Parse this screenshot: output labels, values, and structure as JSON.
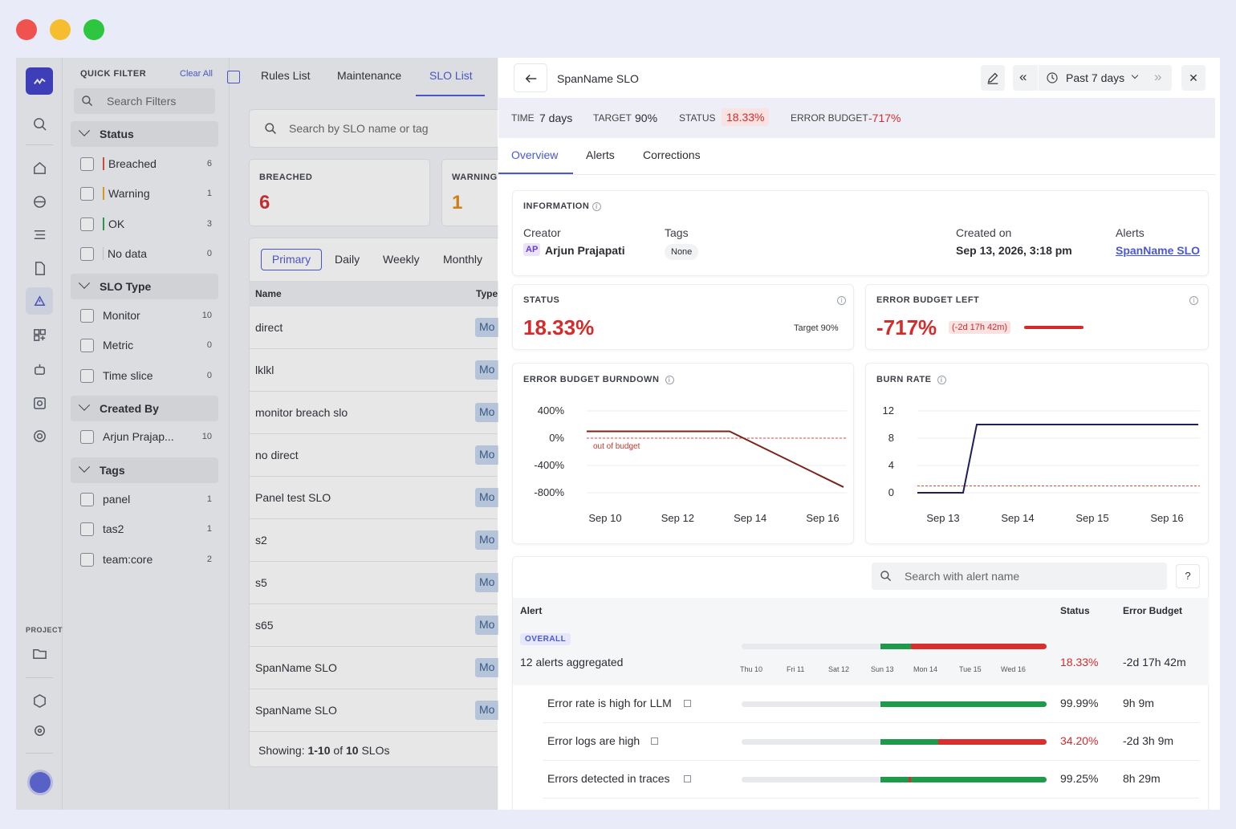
{
  "window": {
    "buttons": [
      "close",
      "minimize",
      "maximize"
    ]
  },
  "rail": {
    "project_label": "PROJECT",
    "icons": [
      "logo-icon",
      "search-icon",
      "home-icon",
      "globe-icon",
      "list-icon",
      "document-icon",
      "alert-icon",
      "grid-plus-icon",
      "robot-icon",
      "query-icon",
      "settings-gear-icon",
      "folder-icon",
      "cube-icon",
      "gear-icon",
      "avatar-icon"
    ]
  },
  "filters": {
    "title": "QUICK FILTER",
    "clear": "Clear All",
    "search_placeholder": "Search Filters",
    "status": {
      "label": "Status",
      "items": [
        {
          "label": "Breached",
          "count": "6",
          "color": "#e04b3a"
        },
        {
          "label": "Warning",
          "count": "1",
          "color": "#f0a020"
        },
        {
          "label": "OK",
          "count": "3",
          "color": "#28a050"
        },
        {
          "label": "No data",
          "count": "0",
          "color": "#c8c8c8"
        }
      ]
    },
    "slo_type": {
      "label": "SLO Type",
      "items": [
        {
          "label": "Monitor",
          "count": "10"
        },
        {
          "label": "Metric",
          "count": "0"
        },
        {
          "label": "Time slice",
          "count": "0"
        }
      ]
    },
    "created_by": {
      "label": "Created By",
      "items": [
        {
          "label": "Arjun Prajap...",
          "count": "10"
        }
      ]
    },
    "tags": {
      "label": "Tags",
      "items": [
        {
          "label": "panel",
          "count": "1"
        },
        {
          "label": "tas2",
          "count": "1"
        },
        {
          "label": "team:core",
          "count": "2"
        }
      ]
    }
  },
  "list": {
    "tabs": [
      "Rules List",
      "Maintenance",
      "SLO List"
    ],
    "active_tab": "SLO List",
    "search_placeholder": "Search by SLO name or tag",
    "breached_label": "BREACHED",
    "breached_value": "6",
    "warning_label": "WARNING",
    "warning_value": "1",
    "periods": [
      "Primary",
      "Daily",
      "Weekly",
      "Monthly"
    ],
    "columns": [
      "Name",
      "Type"
    ],
    "rows": [
      {
        "name": "direct",
        "type": "Mo"
      },
      {
        "name": "lklkl",
        "type": "Mo"
      },
      {
        "name": "monitor breach slo",
        "type": "Mo"
      },
      {
        "name": "no direct",
        "type": "Mo"
      },
      {
        "name": "Panel test SLO",
        "type": "Mo"
      },
      {
        "name": "s2",
        "type": "Mo"
      },
      {
        "name": "s5",
        "type": "Mo"
      },
      {
        "name": "s65",
        "type": "Mo"
      },
      {
        "name": "SpanName SLO",
        "type": "Mo"
      },
      {
        "name": "SpanName SLO",
        "type": "Mo"
      }
    ],
    "footer_prefix": "Showing: ",
    "footer_range": "1-10",
    "footer_mid": " of ",
    "footer_total": "10",
    "footer_suffix": " SLOs"
  },
  "detail": {
    "title": "SpanName SLO",
    "range": "Past 7 days",
    "summary": {
      "time_label": "TIME",
      "time_value": "7 days",
      "target_label": "TARGET",
      "target_value": "90%",
      "status_label": "STATUS",
      "status_value": "18.33%",
      "budget_label": "ERROR BUDGET",
      "budget_value": "-717%"
    },
    "tabs": [
      "Overview",
      "Alerts",
      "Corrections"
    ],
    "information": {
      "title": "INFORMATION",
      "creator_label": "Creator",
      "creator_initials": "AP",
      "creator_name": "Arjun Prajapati",
      "tags_label": "Tags",
      "tags_value": "None",
      "created_label": "Created on",
      "created_value": "Sep 13, 2026, 3:18 pm",
      "alerts_label": "Alerts",
      "alerts_value": "SpanName SLO"
    },
    "status_card": {
      "title": "STATUS",
      "value": "18.33%",
      "target": "Target 90%"
    },
    "budget_card": {
      "title": "ERROR BUDGET LEFT",
      "value": "-717%",
      "badge": "(-2d 17h 42m)"
    },
    "alert_search_placeholder": "Search with alert name",
    "alert_columns": {
      "alert": "Alert",
      "status": "Status",
      "budget": "Error Budget"
    },
    "overall": {
      "tag": "OVERALL",
      "label": "12 alerts aggregated",
      "status": "18.33%",
      "budget": "-2d 17h 42m",
      "days": [
        "Thu 10",
        "Fri 11",
        "Sat 12",
        "Sun 13",
        "Mon 14",
        "Tue 15",
        "Wed 16"
      ]
    },
    "alerts": [
      {
        "name": "Error rate is high for LLM",
        "status": "99.99%",
        "budget": "9h 9m"
      },
      {
        "name": "Error logs are high",
        "status": "34.20%",
        "budget": "-2d 3h 9m"
      },
      {
        "name": "Errors detected in traces",
        "status": "99.25%",
        "budget": "8h 29m"
      }
    ]
  },
  "chart_data": [
    {
      "type": "line",
      "title": "ERROR BUDGET BURNDOWN",
      "x_ticks": [
        "Sep 10",
        "Sep 12",
        "Sep 14",
        "Sep 16"
      ],
      "y_ticks": [
        "400%",
        "0%",
        "-400%",
        "-800%"
      ],
      "ylim": [
        -800,
        400
      ],
      "annotation": "out of budget",
      "series": [
        {
          "x": [
            "Sep 10",
            "Sep 12",
            "Sep 13",
            "Sep 16"
          ],
          "values": [
            100,
            100,
            100,
            -717
          ],
          "color": "#7a2419"
        }
      ],
      "threshold": 0
    },
    {
      "type": "line",
      "title": "BURN RATE",
      "x_ticks": [
        "Sep 13",
        "Sep 14",
        "Sep 15",
        "Sep 16"
      ],
      "y_ticks": [
        "12",
        "8",
        "4",
        "0"
      ],
      "ylim": [
        0,
        12
      ],
      "series": [
        {
          "x": [
            "Sep 13",
            "Sep 13.6",
            "Sep 13.7",
            "Sep 16"
          ],
          "values": [
            0,
            0,
            10,
            10
          ],
          "color": "#1f1f5c"
        }
      ],
      "threshold": 1
    }
  ]
}
